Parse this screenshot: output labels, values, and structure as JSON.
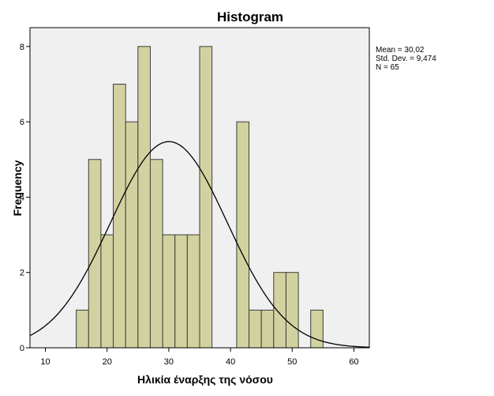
{
  "chart_data": {
    "type": "bar",
    "title": "Histogram",
    "xlabel": "Ηλικία έναρξης της νόσου",
    "ylabel": "Frequency",
    "xlim": [
      7.5,
      62.5
    ],
    "ylim": [
      0,
      8.5
    ],
    "x_ticks": [
      "10",
      "20",
      "30",
      "40",
      "50",
      "60"
    ],
    "y_ticks": [
      "0",
      "2",
      "4",
      "6",
      "8"
    ],
    "bin_width": 2,
    "bins": [
      {
        "start": 15,
        "end": 17,
        "count": 1
      },
      {
        "start": 17,
        "end": 19,
        "count": 5
      },
      {
        "start": 19,
        "end": 21,
        "count": 3
      },
      {
        "start": 21,
        "end": 23,
        "count": 7
      },
      {
        "start": 23,
        "end": 25,
        "count": 6
      },
      {
        "start": 25,
        "end": 27,
        "count": 8
      },
      {
        "start": 27,
        "end": 29,
        "count": 5
      },
      {
        "start": 29,
        "end": 31,
        "count": 3
      },
      {
        "start": 31,
        "end": 33,
        "count": 3
      },
      {
        "start": 33,
        "end": 35,
        "count": 3
      },
      {
        "start": 35,
        "end": 37,
        "count": 8
      },
      {
        "start": 41,
        "end": 43,
        "count": 6
      },
      {
        "start": 43,
        "end": 45,
        "count": 1
      },
      {
        "start": 45,
        "end": 47,
        "count": 1
      },
      {
        "start": 47,
        "end": 49,
        "count": 2
      },
      {
        "start": 49,
        "end": 51,
        "count": 2
      },
      {
        "start": 53,
        "end": 55,
        "count": 1
      }
    ],
    "normal_curve": {
      "mean": 30.02,
      "std_dev": 9.474,
      "n": 65
    },
    "stats_text": [
      "Mean = 30,02",
      "Std. Dev. = 9,474",
      "N = 65"
    ],
    "grid": false,
    "legend": "none",
    "colors": {
      "bar_fill": "#d2d2a0",
      "bar_stroke": "#3c3c3c",
      "plot_background": "#f0f0f0",
      "curve": "#000000"
    }
  }
}
